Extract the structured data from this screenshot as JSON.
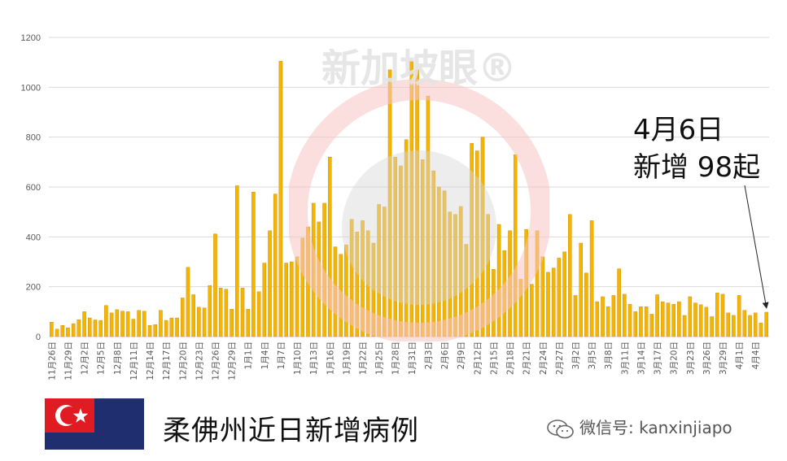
{
  "chart_data": {
    "type": "bar",
    "title": "",
    "xlabel": "",
    "ylabel": "",
    "ylim": [
      0,
      1200
    ],
    "y_ticks": [
      0,
      200,
      400,
      600,
      800,
      1000,
      1200
    ],
    "grid": true,
    "bar_color": "#f4b400",
    "categories": [
      "11月26日",
      "11月27日",
      "11月28日",
      "11月29日",
      "11月30日",
      "12月1日",
      "12月2日",
      "12月3日",
      "12月4日",
      "12月5日",
      "12月6日",
      "12月7日",
      "12月8日",
      "12月9日",
      "12月10日",
      "12月11日",
      "12月12日",
      "12月13日",
      "12月14日",
      "12月15日",
      "12月16日",
      "12月17日",
      "12月18日",
      "12月19日",
      "12月20日",
      "12月21日",
      "12月22日",
      "12月23日",
      "12月24日",
      "12月25日",
      "12月26日",
      "12月27日",
      "12月28日",
      "12月29日",
      "12月30日",
      "12月31日",
      "1月1日",
      "1月2日",
      "1月3日",
      "1月4日",
      "1月5日",
      "1月6日",
      "1月7日",
      "1月8日",
      "1月9日",
      "1月10日",
      "1月11日",
      "1月12日",
      "1月13日",
      "1月14日",
      "1月15日",
      "1月16日",
      "1月17日",
      "1月18日",
      "1月19日",
      "1月20日",
      "1月21日",
      "1月22日",
      "1月23日",
      "1月24日",
      "1月25日",
      "1月26日",
      "1月27日",
      "1月28日",
      "1月29日",
      "1月30日",
      "1月31日",
      "2月1日",
      "2月2日",
      "2月3日",
      "2月4日",
      "2月5日",
      "2月6日",
      "2月7日",
      "2月8日",
      "2月9日",
      "2月10日",
      "2月11日",
      "2月12日",
      "2月13日",
      "2月14日",
      "2月15日",
      "2月16日",
      "2月17日",
      "2月18日",
      "2月19日",
      "2月20日",
      "2月21日",
      "2月22日",
      "2月23日",
      "2月24日",
      "2月25日",
      "2月26日",
      "2月27日",
      "2月28日",
      "3月1日",
      "3月2日",
      "3月3日",
      "3月4日",
      "3月5日",
      "3月6日",
      "3月7日",
      "3月8日",
      "3月9日",
      "3月10日",
      "3月11日",
      "3月12日",
      "3月13日",
      "3月14日",
      "3月15日",
      "3月16日",
      "3月17日",
      "3月18日",
      "3月19日",
      "3月20日",
      "3月21日",
      "3月22日",
      "3月23日",
      "3月24日",
      "3月25日",
      "3月26日",
      "3月27日",
      "3月28日",
      "3月29日",
      "3月30日",
      "3月31日",
      "4月1日",
      "4月2日",
      "4月3日",
      "4月4日",
      "4月5日",
      "4月6日"
    ],
    "tick_labels_shown": [
      "11月26日",
      "11月29日",
      "12月2日",
      "12月5日",
      "12月8日",
      "12月11日",
      "12月14日",
      "12月17日",
      "12月20日",
      "12月23日",
      "12月26日",
      "12月29日",
      "1月1日",
      "1月4日",
      "1月7日",
      "1月10日",
      "1月13日",
      "1月16日",
      "1月19日",
      "1月22日",
      "1月25日",
      "1月28日",
      "1月31日",
      "2月3日",
      "2月6日",
      "2月9日",
      "2月12日",
      "2月15日",
      "2月18日",
      "2月21日",
      "2月24日",
      "2月27日",
      "3月2日",
      "3月5日",
      "3月8日",
      "3月11日",
      "3月14日",
      "3月17日",
      "3月20日",
      "3月23日",
      "3月26日",
      "3月29日",
      "4月1日",
      "4月4日"
    ],
    "values": [
      58,
      30,
      45,
      35,
      52,
      68,
      100,
      75,
      67,
      65,
      125,
      95,
      108,
      102,
      100,
      70,
      105,
      102,
      45,
      48,
      105,
      65,
      75,
      75,
      155,
      278,
      168,
      118,
      115,
      205,
      412,
      195,
      190,
      110,
      605,
      195,
      110,
      580,
      180,
      295,
      425,
      572,
      1105,
      295,
      300,
      320,
      395,
      440,
      535,
      460,
      535,
      720,
      360,
      330,
      368,
      470,
      420,
      465,
      425,
      375,
      530,
      520,
      1070,
      720,
      685,
      790,
      1105,
      1070,
      710,
      965,
      665,
      600,
      585,
      500,
      490,
      522,
      370,
      775,
      745,
      800,
      490,
      270,
      450,
      345,
      425,
      730,
      230,
      430,
      210,
      425,
      320,
      258,
      275,
      315,
      340,
      490,
      165,
      375,
      255,
      465,
      140,
      160,
      120,
      165,
      272,
      170,
      130,
      100,
      120,
      120,
      90,
      168,
      140,
      135,
      130,
      140,
      85,
      160,
      135,
      128,
      118,
      80,
      175,
      170,
      95,
      85,
      165,
      105,
      85,
      95,
      55,
      98
    ]
  },
  "annotation": {
    "line1": "4月6日",
    "line2": "新增 98起"
  },
  "watermark_text": "新加坡眼®",
  "footer": {
    "title": "柔佛州近日新增病例",
    "wechat_label": "微信号: kanxinjiapo"
  },
  "colors": {
    "bar": "#f4b400",
    "bar_edge": "#c98a00",
    "grid": "#d9d9d9",
    "axis_text": "#595959",
    "flag_blue": "#1e2e6e",
    "flag_red": "#e11b22",
    "watermark_red": "#f6b3b3"
  }
}
